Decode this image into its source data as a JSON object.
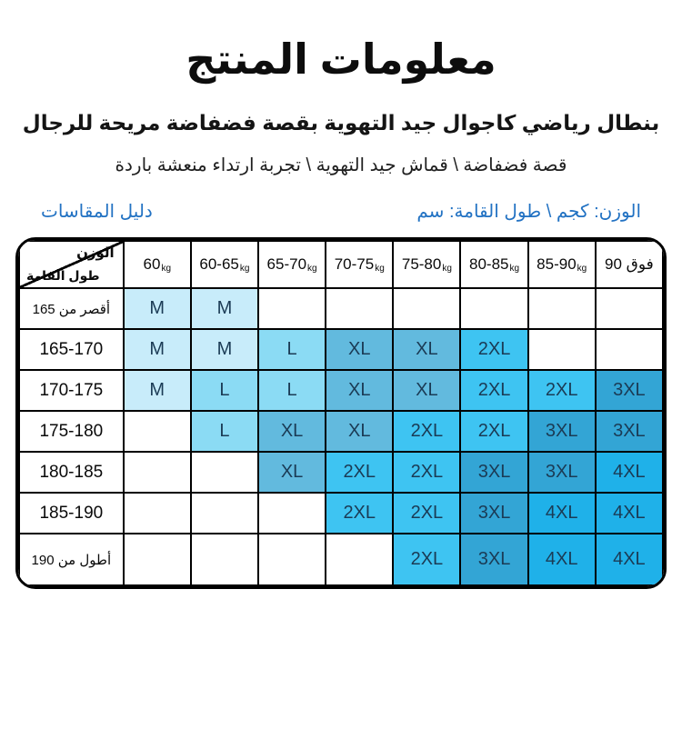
{
  "page": {
    "title": "معلومات المنتج",
    "subtitle": "بنطال رياضي كاجوال جيد التهوية بقصة فضفاضة مريحة للرجال",
    "tagline": "قصة فضفاضة \\ قماش جيد التهوية \\ تجربة ارتداء منعشة باردة",
    "units_label": "الوزن: كجم \\ طول القامة: سم",
    "size_guide_label": "دليل المقاسات",
    "accent_blue": "#2272c3"
  },
  "size_chart": {
    "corner": {
      "weight_label": "الوزن",
      "height_label": "طول القامة"
    },
    "weight_columns": [
      {
        "label": "60",
        "unit": "kg"
      },
      {
        "label": "60-65",
        "unit": "kg"
      },
      {
        "label": "65-70",
        "unit": "kg"
      },
      {
        "label": "70-75",
        "unit": "kg"
      },
      {
        "label": "75-80",
        "unit": "kg"
      },
      {
        "label": "80-85",
        "unit": "kg"
      },
      {
        "label": "85-90",
        "unit": "kg"
      },
      {
        "label": "فوق 90",
        "unit": ""
      }
    ],
    "rows": [
      {
        "height": "أقصر من 165",
        "cells": [
          "M",
          "M",
          "",
          "",
          "",
          "",
          "",
          ""
        ]
      },
      {
        "height": "165-170",
        "cells": [
          "M",
          "M",
          "L",
          "XL",
          "XL",
          "2XL",
          "",
          ""
        ]
      },
      {
        "height": "170-175",
        "cells": [
          "M",
          "L",
          "L",
          "XL",
          "XL",
          "2XL",
          "2XL",
          "3XL"
        ]
      },
      {
        "height": "175-180",
        "cells": [
          "",
          "L",
          "XL",
          "XL",
          "2XL",
          "2XL",
          "3XL",
          "3XL"
        ]
      },
      {
        "height": "180-185",
        "cells": [
          "",
          "",
          "XL",
          "2XL",
          "2XL",
          "3XL",
          "3XL",
          "4XL"
        ]
      },
      {
        "height": "185-190",
        "cells": [
          "",
          "",
          "",
          "2XL",
          "2XL",
          "3XL",
          "4XL",
          "4XL"
        ]
      },
      {
        "height": "أطول من 190",
        "cells": [
          "",
          "",
          "",
          "",
          "2XL",
          "3XL",
          "4XL",
          "4XL"
        ]
      }
    ],
    "size_colors": {
      "M": "#c8ecfa",
      "L": "#8bdbf4",
      "XL": "#62bade",
      "2XL": "#3ec4f2",
      "3XL": "#33a5d5",
      "4XL": "#1fb1e9"
    },
    "empty_cell_color": "#ffffff",
    "border_color": "#000000",
    "cell_text_color": "#1b3b55"
  }
}
